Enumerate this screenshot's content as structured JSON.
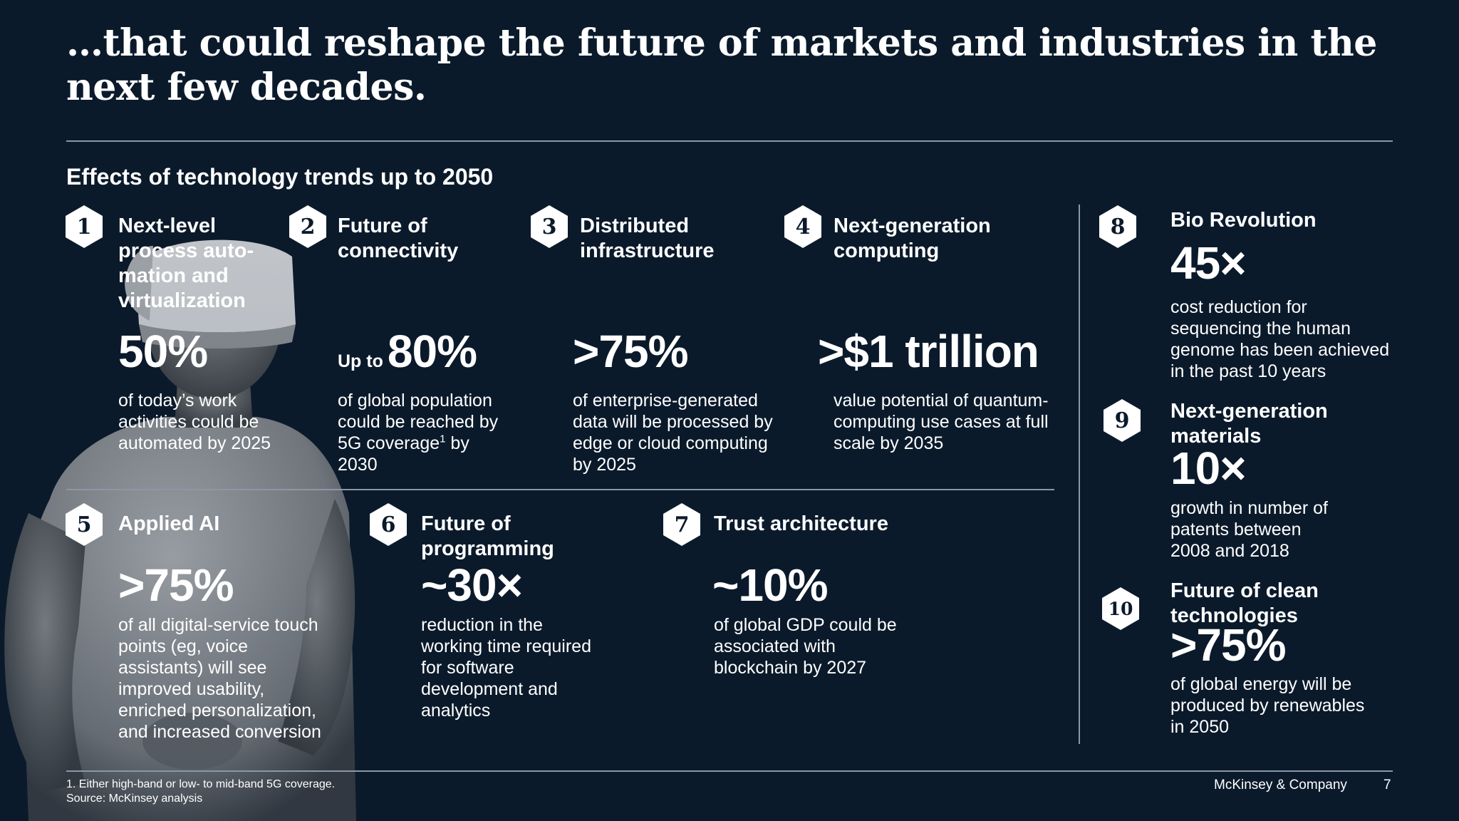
{
  "title": "…that could reshape the future of markets and industries in the next few decades.",
  "subtitle": "Effects of technology trends up to 2050",
  "trends": [
    {
      "number": "1",
      "heading": "Next-level process auto-mation and virtualization",
      "stat_prefix": "",
      "stat": "50%",
      "desc": "of today’s work activities could be automated by 2025",
      "desc_sup": "",
      "desc_tail": ""
    },
    {
      "number": "2",
      "heading": "Future of connectivity",
      "stat_prefix": "Up to",
      "stat": "80%",
      "desc": "of global population could be reached by 5G coverage",
      "desc_sup": "1",
      "desc_tail": " by 2030"
    },
    {
      "number": "3",
      "heading": "Distributed infrastructure",
      "stat_prefix": "",
      "stat": ">75%",
      "desc": "of enterprise-generated data will be processed by edge or cloud computing by 2025",
      "desc_sup": "",
      "desc_tail": ""
    },
    {
      "number": "4",
      "heading": "Next-generation computing",
      "stat_prefix": "",
      "stat": ">$1 trillion",
      "desc": "value potential of quantum-computing use cases at full scale by 2035",
      "desc_sup": "",
      "desc_tail": ""
    },
    {
      "number": "5",
      "heading": "Applied AI",
      "stat_prefix": "",
      "stat": ">75%",
      "desc": "of all digital-service touch points (eg, voice assistants) will see improved usability, enriched personalization, and increased conversion",
      "desc_sup": "",
      "desc_tail": ""
    },
    {
      "number": "6",
      "heading": "Future of programming",
      "stat_prefix": "",
      "stat": "~30×",
      "desc": "reduction in the working time required for software development and analytics",
      "desc_sup": "",
      "desc_tail": ""
    },
    {
      "number": "7",
      "heading": "Trust architecture",
      "stat_prefix": "",
      "stat": "~10%",
      "desc": "of global GDP could be associated with blockchain by 2027",
      "desc_sup": "",
      "desc_tail": ""
    },
    {
      "number": "8",
      "heading": "Bio Revolution",
      "stat_prefix": "",
      "stat": "45×",
      "desc": "cost reduction for sequencing the human genome has been achieved in the past 10 years",
      "desc_sup": "",
      "desc_tail": ""
    },
    {
      "number": "9",
      "heading": "Next-generation materials",
      "stat_prefix": "",
      "stat": "10×",
      "desc": "growth in number of patents between 2008 and 2018",
      "desc_sup": "",
      "desc_tail": ""
    },
    {
      "number": "10",
      "heading": "Future of clean technologies",
      "stat_prefix": "",
      "stat": ">75%",
      "desc": "of global energy will be produced by renewables in 2050",
      "desc_sup": "",
      "desc_tail": ""
    }
  ],
  "footnote_1": "1. Either high-band or low- to mid-band 5G coverage.",
  "footnote_source": "Source: McKinsey analysis",
  "brand": "McKinsey & Company",
  "page_number": "7",
  "colors": {
    "background": "#0b1a2b",
    "text": "#ffffff",
    "rule": "#8a97a6"
  }
}
